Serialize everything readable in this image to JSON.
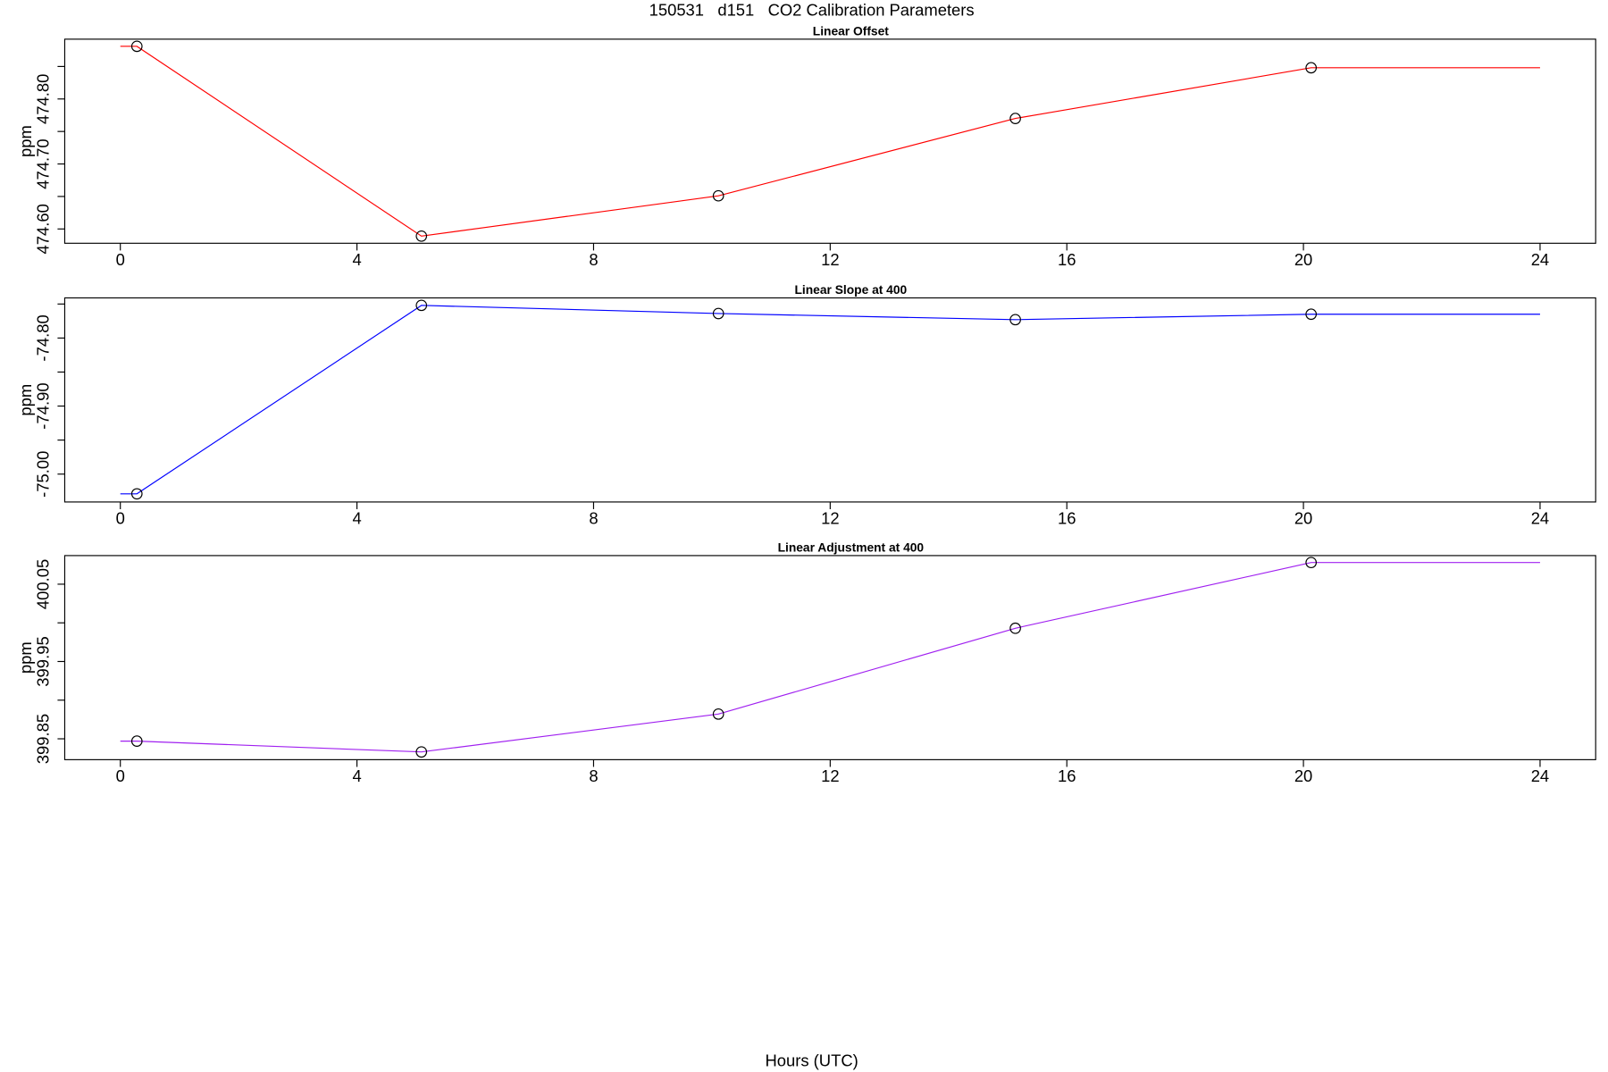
{
  "title": "150531   d151   CO2 Calibration Parameters",
  "xlabel": "Hours (UTC)",
  "chart_data": [
    {
      "type": "line",
      "title": "Linear Offset",
      "ylabel": "ppm",
      "xlim": [
        -0.94,
        24.94
      ],
      "xticks": [
        0,
        4,
        8,
        12,
        16,
        20,
        24
      ],
      "ylim": [
        474.578,
        474.892
      ],
      "yticks": [
        {
          "value": 474.6,
          "label": "474.60"
        },
        {
          "value": 474.7,
          "label": "474.70"
        },
        {
          "value": 474.8,
          "label": "474.80"
        }
      ],
      "minor_yticks": [
        474.65,
        474.75,
        474.85
      ],
      "series": [
        {
          "style": "line",
          "color": "#ff0000",
          "x": [
            0,
            0.28,
            5.09,
            10.11,
            15.13,
            20.13,
            24
          ],
          "values": [
            474.881,
            474.881,
            474.589,
            474.651,
            474.77,
            474.848,
            474.848
          ]
        },
        {
          "style": "points",
          "color": "#000000",
          "x": [
            0.28,
            5.09,
            10.11,
            15.13,
            20.13
          ],
          "values": [
            474.881,
            474.589,
            474.651,
            474.77,
            474.848
          ]
        }
      ]
    },
    {
      "type": "line",
      "title": "Linear Slope at 400",
      "ylabel": "ppm",
      "xlim": [
        -0.94,
        24.94
      ],
      "xticks": [
        0,
        4,
        8,
        12,
        16,
        20,
        24
      ],
      "ylim": [
        -75.041,
        -74.741
      ],
      "yticks": [
        {
          "value": -75.0,
          "label": "-75.00"
        },
        {
          "value": -74.9,
          "label": "-74.90"
        },
        {
          "value": -74.8,
          "label": "-74.80"
        }
      ],
      "minor_yticks": [
        -74.95,
        -74.85,
        -74.75
      ],
      "series": [
        {
          "style": "line",
          "color": "#0000ff",
          "x": [
            0,
            0.28,
            5.09,
            10.11,
            15.13,
            20.13,
            24
          ],
          "values": [
            -75.029,
            -75.029,
            -74.752,
            -74.764,
            -74.773,
            -74.765,
            -74.765
          ]
        },
        {
          "style": "points",
          "color": "#000000",
          "x": [
            0.28,
            5.09,
            10.11,
            15.13,
            20.13
          ],
          "values": [
            -75.029,
            -74.752,
            -74.764,
            -74.773,
            -74.765
          ]
        }
      ]
    },
    {
      "type": "line",
      "title": "Linear Adjustment at 400",
      "ylabel": "ppm",
      "xlim": [
        -0.94,
        24.94
      ],
      "xticks": [
        0,
        4,
        8,
        12,
        16,
        20,
        24
      ],
      "ylim": [
        399.823,
        400.087
      ],
      "yticks": [
        {
          "value": 399.85,
          "label": "399.85"
        },
        {
          "value": 399.95,
          "label": "399.95"
        },
        {
          "value": 400.05,
          "label": "400.05"
        }
      ],
      "minor_yticks": [
        399.9,
        400.0
      ],
      "series": [
        {
          "style": "line",
          "color": "#a020f0",
          "x": [
            0,
            0.28,
            5.09,
            10.11,
            15.13,
            20.13,
            24
          ],
          "values": [
            399.847,
            399.847,
            399.833,
            399.882,
            399.993,
            400.078,
            400.078
          ]
        },
        {
          "style": "points",
          "color": "#000000",
          "x": [
            0.28,
            5.09,
            10.11,
            15.13,
            20.13
          ],
          "values": [
            399.847,
            399.833,
            399.882,
            399.993,
            400.078
          ]
        }
      ]
    }
  ]
}
